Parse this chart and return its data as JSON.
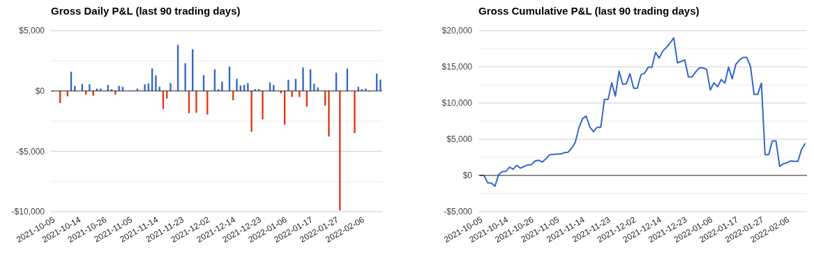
{
  "chart_data": [
    {
      "type": "bar",
      "title": "Gross Daily P&L (last 90 trading days)",
      "categories": [
        "2021-10-05",
        null,
        null,
        null,
        null,
        null,
        null,
        "2021-10-14",
        null,
        null,
        null,
        null,
        null,
        null,
        "2021-10-26",
        null,
        null,
        null,
        null,
        null,
        null,
        "2021-11-05",
        null,
        null,
        null,
        null,
        null,
        null,
        "2021-11-14",
        null,
        null,
        null,
        null,
        null,
        null,
        "2021-11-23",
        null,
        null,
        null,
        null,
        null,
        null,
        "2021-12-02",
        null,
        null,
        null,
        null,
        null,
        null,
        "2021-12-14",
        null,
        null,
        null,
        null,
        null,
        null,
        "2021-12-23",
        null,
        null,
        null,
        null,
        null,
        null,
        "2022-01-06",
        null,
        null,
        null,
        null,
        null,
        null,
        "2022-01-17",
        null,
        null,
        null,
        null,
        null,
        null,
        "2022-01-27",
        null,
        null,
        null,
        null,
        null,
        null,
        "2022-02-06",
        null,
        null,
        null,
        null,
        null
      ],
      "values": [
        -50,
        0,
        -1000,
        0,
        -450,
        1600,
        420,
        0,
        580,
        -300,
        550,
        -400,
        200,
        200,
        0,
        500,
        150,
        -300,
        420,
        350,
        0,
        50,
        0,
        200,
        0,
        550,
        630,
        1860,
        1290,
        350,
        -1500,
        -630,
        650,
        0,
        3820,
        0,
        2300,
        -1840,
        3460,
        -1800,
        0,
        1300,
        -1950,
        0,
        1800,
        150,
        770,
        0,
        2020,
        -770,
        1000,
        450,
        500,
        650,
        -3380,
        150,
        150,
        -2360,
        0,
        710,
        500,
        0,
        -200,
        -2800,
        920,
        -500,
        1000,
        -500,
        1940,
        -1290,
        1800,
        600,
        300,
        0,
        -1210,
        -3780,
        0,
        1520,
        -9900,
        0,
        1850,
        0,
        -3490,
        350,
        150,
        200,
        -50,
        0,
        1440,
        940
      ],
      "colors": [
        "#dc3912",
        "#3366cc",
        "#dc3912",
        "#3366cc",
        "#dc3912",
        "#3366cc",
        "#3366cc",
        "#3366cc",
        "#3366cc",
        "#dc3912",
        "#3366cc",
        "#dc3912",
        "#3366cc",
        "#3366cc",
        "#3366cc",
        "#3366cc",
        "#3366cc",
        "#dc3912",
        "#3366cc",
        "#3366cc",
        "#3366cc",
        "#3366cc",
        "#3366cc",
        "#3366cc",
        "#3366cc",
        "#3366cc",
        "#3366cc",
        "#3366cc",
        "#3366cc",
        "#3366cc",
        "#dc3912",
        "#dc3912",
        "#3366cc",
        "#3366cc",
        "#3366cc",
        "#3366cc",
        "#3366cc",
        "#dc3912",
        "#3366cc",
        "#dc3912",
        "#3366cc",
        "#3366cc",
        "#dc3912",
        "#3366cc",
        "#3366cc",
        "#3366cc",
        "#3366cc",
        "#3366cc",
        "#3366cc",
        "#dc3912",
        "#3366cc",
        "#3366cc",
        "#3366cc",
        "#3366cc",
        "#dc3912",
        "#3366cc",
        "#3366cc",
        "#dc3912",
        "#3366cc",
        "#3366cc",
        "#3366cc",
        "#3366cc",
        "#dc3912",
        "#dc3912",
        "#3366cc",
        "#dc3912",
        "#3366cc",
        "#dc3912",
        "#3366cc",
        "#dc3912",
        "#3366cc",
        "#3366cc",
        "#3366cc",
        "#3366cc",
        "#dc3912",
        "#dc3912",
        "#3366cc",
        "#3366cc",
        "#dc3912",
        "#3366cc",
        "#3366cc",
        "#3366cc",
        "#dc3912",
        "#3366cc",
        "#3366cc",
        "#3366cc",
        "#dc3912",
        "#3366cc",
        "#3366cc",
        "#3366cc"
      ],
      "ylim": [
        -10000,
        5000
      ],
      "yticks": [
        {
          "value": -10000,
          "label": "-$10,000"
        },
        {
          "value": -7500,
          "label": null
        },
        {
          "value": -5000,
          "label": "-$5,000"
        },
        {
          "value": -2500,
          "label": null
        },
        {
          "value": 0,
          "label": "$0"
        },
        {
          "value": 2500,
          "label": null
        },
        {
          "value": 5000,
          "label": "$5,000"
        }
      ],
      "grid": "y"
    },
    {
      "type": "line",
      "title": "Gross Cumulative P&L (last 90 trading days)",
      "categories": [
        "2021-10-05",
        null,
        null,
        null,
        null,
        null,
        null,
        "2021-10-14",
        null,
        null,
        null,
        null,
        null,
        null,
        "2021-10-26",
        null,
        null,
        null,
        null,
        null,
        null,
        "2021-11-05",
        null,
        null,
        null,
        null,
        null,
        null,
        "2021-11-14",
        null,
        null,
        null,
        null,
        null,
        null,
        "2021-11-23",
        null,
        null,
        null,
        null,
        null,
        null,
        "2021-12-02",
        null,
        null,
        null,
        null,
        null,
        null,
        "2021-12-14",
        null,
        null,
        null,
        null,
        null,
        null,
        "2021-12-23",
        null,
        null,
        null,
        null,
        null,
        null,
        "2022-01-06",
        null,
        null,
        null,
        null,
        null,
        null,
        "2022-01-17",
        null,
        null,
        null,
        null,
        null,
        null,
        "2022-01-27",
        null,
        null,
        null,
        null,
        null,
        null,
        "2022-02-06",
        null,
        null,
        null,
        null,
        null
      ],
      "series": [
        {
          "color": "#3366cc",
          "values": [
            0,
            0,
            -1000,
            -1050,
            -1500,
            100,
            520,
            550,
            1150,
            850,
            1400,
            1000,
            1250,
            1450,
            1500,
            2000,
            2100,
            1850,
            2300,
            2870,
            2880,
            2950,
            2950,
            3150,
            3200,
            3750,
            4550,
            6550,
            7850,
            8200,
            6700,
            6050,
            6650,
            6650,
            10500,
            10500,
            12800,
            10950,
            14400,
            12600,
            12650,
            14050,
            12050,
            12050,
            13900,
            14100,
            14950,
            14950,
            17000,
            16200,
            17200,
            17700,
            18300,
            19000,
            15550,
            15750,
            15950,
            13600,
            13600,
            14300,
            14850,
            14850,
            14650,
            11800,
            12800,
            12250,
            13250,
            12750,
            14950,
            13350,
            15350,
            15950,
            16300,
            16300,
            15050,
            11200,
            11200,
            12750,
            2850,
            2850,
            4750,
            4750,
            1250,
            1600,
            1750,
            2000,
            1950,
            1950,
            3600,
            4400
          ]
        }
      ],
      "ylim": [
        -5000,
        20000
      ],
      "yticks": [
        {
          "value": -5000,
          "label": "-$5,000"
        },
        {
          "value": -2500,
          "label": null
        },
        {
          "value": 0,
          "label": "$0"
        },
        {
          "value": 2500,
          "label": null
        },
        {
          "value": 5000,
          "label": "$5,000"
        },
        {
          "value": 7500,
          "label": null
        },
        {
          "value": 10000,
          "label": "$10,000"
        },
        {
          "value": 12500,
          "label": null
        },
        {
          "value": 15000,
          "label": "$15,000"
        },
        {
          "value": 17500,
          "label": null
        },
        {
          "value": 20000,
          "label": "$20,000"
        }
      ],
      "grid": "y",
      "line_style": "solid",
      "marker": "none"
    }
  ]
}
